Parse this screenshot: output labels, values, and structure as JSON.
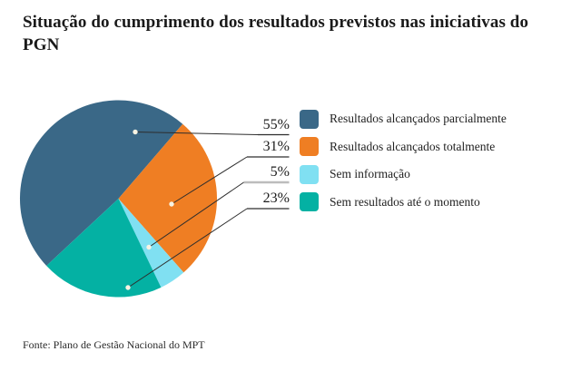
{
  "header": {
    "title": "Situação do cumprimento dos resultados previstos nas iniciativas do PGN"
  },
  "footer": {
    "source": "Fonte: Plano de Gestão Nacional do MPT"
  },
  "colors": {
    "background": "#ffffff",
    "leader_line": "#2d2d2d",
    "leader_line_muted": "#bcbcbc",
    "leader_dot": "#f8f3e3",
    "title_text": "#1a1a1a"
  },
  "chart_data": {
    "type": "pie",
    "title": "Situação do cumprimento dos resultados previstos nas iniciativas do PGN",
    "source": "Fonte: Plano de Gestão Nacional do MPT",
    "unit": "%",
    "legend_position": "right",
    "start_angle_deg": 227,
    "note": "percent labels as printed sum to 114; slice angles are drawn proportional to value/total",
    "slices": [
      {
        "label": "Resultados alcançados parcialmente",
        "value": 55,
        "display": "55%",
        "color": "#3A6887"
      },
      {
        "label": "Resultados alcançados totalmente",
        "value": 31,
        "display": "31%",
        "color": "#EF7E23"
      },
      {
        "label": "Sem informação",
        "value": 5,
        "display": "5%",
        "color": "#80E0F2"
      },
      {
        "label": "Sem resultados até o momento",
        "value": 23,
        "display": "23%",
        "color": "#04B1A3"
      }
    ]
  }
}
